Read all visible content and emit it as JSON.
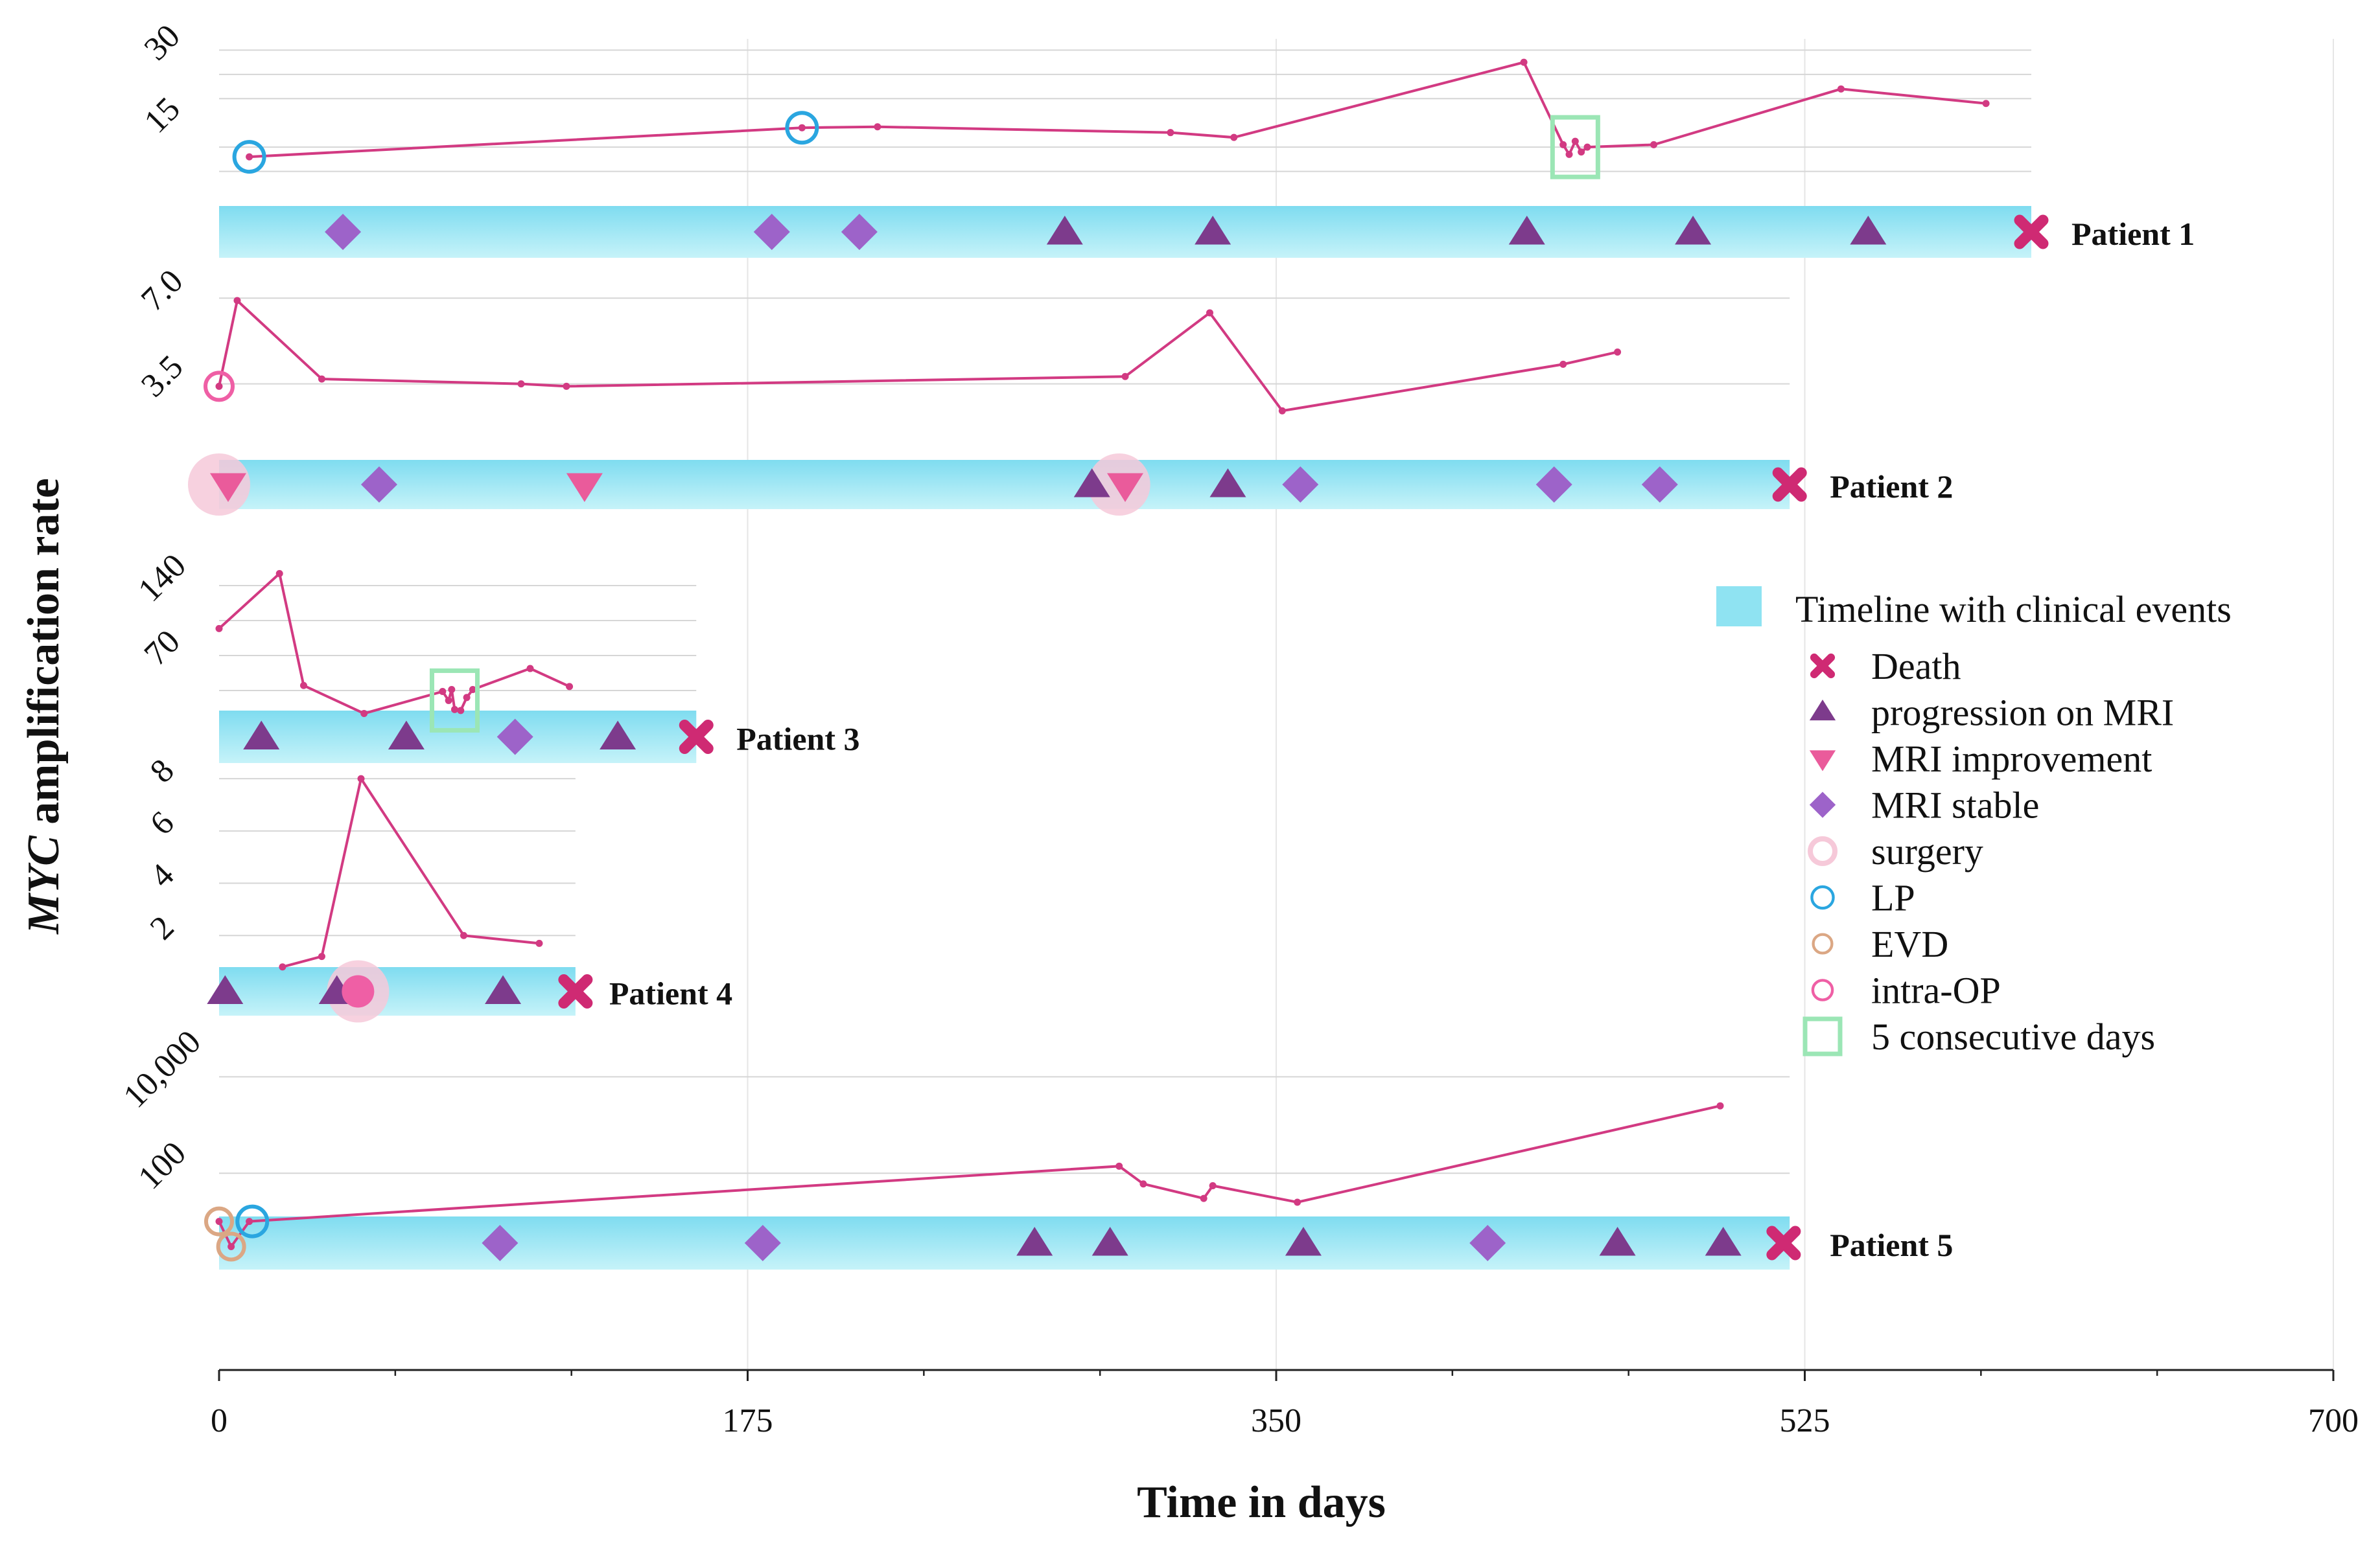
{
  "chart_data": {
    "type": "line",
    "title": "",
    "xlabel": "Time in days",
    "ylabel_prefix": "MYC",
    "ylabel_suffix": " amplification rate",
    "xlim": [
      0,
      700
    ],
    "x_ticks": [
      0,
      175,
      350,
      525,
      700
    ],
    "x_tick_labels": [
      "0",
      "175",
      "350",
      "525",
      "700"
    ],
    "colors": {
      "line": "#d23a82",
      "timeline": "#8fe3f2",
      "death": "#cf2a73",
      "progression": "#7d3b8c",
      "improvement": "#ea5b9b",
      "stable": "#9d63c9",
      "surgery": "#f6c9d9",
      "lp": "#2aa6e0",
      "evd": "#dba784",
      "intraop": "#ef5fa5",
      "five_days": "#9be6b5"
    },
    "legend": {
      "title": "Timeline with clinical events",
      "items": [
        {
          "key": "death",
          "label": "Death"
        },
        {
          "key": "progression",
          "label": "progression on MRI"
        },
        {
          "key": "improvement",
          "label": "MRI improvement"
        },
        {
          "key": "stable",
          "label": "MRI stable"
        },
        {
          "key": "surgery",
          "label": "surgery"
        },
        {
          "key": "lp",
          "label": "LP"
        },
        {
          "key": "evd",
          "label": "EVD"
        },
        {
          "key": "intraop",
          "label": "intra-OP"
        },
        {
          "key": "five_days",
          "label": "5 consecutive days"
        }
      ]
    },
    "series": [
      {
        "name": "Patient 1",
        "y_scale": "linear",
        "ylim": [
          0,
          35
        ],
        "y_ticks": [
          15,
          30
        ],
        "y_tick_labels": [
          "15",
          "30"
        ],
        "gridlines": [
          5,
          10,
          20,
          25,
          30
        ],
        "timeline_end": 600,
        "points": [
          [
            10,
            8
          ],
          [
            193,
            14
          ],
          [
            218,
            14.2
          ],
          [
            315,
            13
          ],
          [
            336,
            12
          ],
          [
            432,
            27.5
          ],
          [
            445,
            10.5
          ],
          [
            447,
            8.5
          ],
          [
            449,
            11.2
          ],
          [
            451,
            9
          ],
          [
            453,
            10
          ],
          [
            475,
            10.5
          ],
          [
            537,
            22
          ],
          [
            585,
            19
          ]
        ],
        "events": [
          {
            "type": "stable",
            "day": 41
          },
          {
            "type": "stable",
            "day": 183
          },
          {
            "type": "stable",
            "day": 212
          },
          {
            "type": "progression",
            "day": 280
          },
          {
            "type": "progression",
            "day": 329
          },
          {
            "type": "progression",
            "day": 433
          },
          {
            "type": "progression",
            "day": 488
          },
          {
            "type": "progression",
            "day": 546
          },
          {
            "type": "death",
            "day": 600
          }
        ],
        "markers": [
          {
            "type": "lp",
            "day": 10,
            "value": 8
          },
          {
            "type": "lp",
            "day": 193,
            "value": 14
          },
          {
            "type": "five_days",
            "day": 449,
            "value": 10
          }
        ]
      },
      {
        "name": "Patient 2",
        "y_scale": "linear",
        "ylim": [
          0,
          7.8
        ],
        "y_ticks": [
          3.5,
          7.0
        ],
        "y_tick_labels": [
          "3.5",
          "7.0"
        ],
        "gridlines": [
          7.0,
          3.5
        ],
        "timeline_end": 520,
        "points": [
          [
            0,
            3.4
          ],
          [
            6,
            6.9
          ],
          [
            34,
            3.7
          ],
          [
            100,
            3.5
          ],
          [
            115,
            3.4
          ],
          [
            300,
            3.8
          ],
          [
            328,
            6.4
          ],
          [
            352,
            2.4
          ],
          [
            445,
            4.3
          ],
          [
            463,
            4.8
          ]
        ],
        "events": [
          {
            "type": "surgery",
            "day": 0
          },
          {
            "type": "improvement",
            "day": 3
          },
          {
            "type": "stable",
            "day": 53
          },
          {
            "type": "improvement",
            "day": 121
          },
          {
            "type": "progression",
            "day": 289
          },
          {
            "type": "surgery",
            "day": 298
          },
          {
            "type": "improvement",
            "day": 300
          },
          {
            "type": "progression",
            "day": 334
          },
          {
            "type": "stable",
            "day": 358
          },
          {
            "type": "stable",
            "day": 442
          },
          {
            "type": "stable",
            "day": 477
          },
          {
            "type": "death",
            "day": 520
          }
        ],
        "markers": [
          {
            "type": "intraop",
            "day": 0,
            "value": 3.4
          }
        ]
      },
      {
        "name": "Patient 3",
        "y_scale": "linear",
        "ylim": [
          0,
          175
        ],
        "y_ticks": [
          70,
          140
        ],
        "y_tick_labels": [
          "70",
          "140"
        ],
        "gridlines": [
          35,
          70,
          105,
          140
        ],
        "timeline_end": 158,
        "points": [
          [
            0,
            97
          ],
          [
            20,
            152
          ],
          [
            28,
            40
          ],
          [
            48,
            12
          ],
          [
            74,
            34
          ],
          [
            76,
            25
          ],
          [
            77,
            36
          ],
          [
            78,
            16
          ],
          [
            80,
            15
          ],
          [
            82,
            28
          ],
          [
            84,
            36
          ],
          [
            103,
            57
          ],
          [
            116,
            39
          ]
        ],
        "events": [
          {
            "type": "progression",
            "day": 14
          },
          {
            "type": "progression",
            "day": 62
          },
          {
            "type": "stable",
            "day": 98
          },
          {
            "type": "progression",
            "day": 132
          },
          {
            "type": "death",
            "day": 158
          }
        ],
        "markers": [
          {
            "type": "five_days",
            "day": 78,
            "value": 25
          }
        ]
      },
      {
        "name": "Patient 4",
        "y_scale": "linear",
        "ylim": [
          0,
          8.3
        ],
        "y_ticks": [
          2,
          4,
          6,
          8
        ],
        "y_tick_labels": [
          "2",
          "4",
          "6",
          "8"
        ],
        "gridlines": [
          2,
          4,
          6,
          8
        ],
        "timeline_end": 118,
        "points": [
          [
            21,
            0.8
          ],
          [
            34,
            1.2
          ],
          [
            47,
            8
          ],
          [
            81,
            2
          ],
          [
            106,
            1.7
          ]
        ],
        "events": [
          {
            "type": "progression",
            "day": 2
          },
          {
            "type": "progression",
            "day": 39
          },
          {
            "type": "surgery",
            "day": 46
          },
          {
            "type": "intraop",
            "day": 46
          },
          {
            "type": "progression",
            "day": 94
          },
          {
            "type": "death",
            "day": 118
          }
        ],
        "markers": []
      },
      {
        "name": "Patient 5",
        "y_scale": "log",
        "ylim": [
          1,
          20000
        ],
        "y_ticks": [
          100,
          10000
        ],
        "y_tick_labels": [
          "100",
          "10,000"
        ],
        "gridlines": [
          100,
          10000
        ],
        "timeline_end": 520,
        "points": [
          [
            0,
            10
          ],
          [
            4,
            3
          ],
          [
            10,
            10
          ],
          [
            298,
            140
          ],
          [
            306,
            60
          ],
          [
            326,
            30
          ],
          [
            329,
            55
          ],
          [
            357,
            25
          ],
          [
            497,
            2500
          ]
        ],
        "events": [
          {
            "type": "stable",
            "day": 93
          },
          {
            "type": "stable",
            "day": 180
          },
          {
            "type": "progression",
            "day": 270
          },
          {
            "type": "progression",
            "day": 295
          },
          {
            "type": "progression",
            "day": 359
          },
          {
            "type": "stable",
            "day": 420
          },
          {
            "type": "progression",
            "day": 463
          },
          {
            "type": "progression",
            "day": 498
          },
          {
            "type": "death",
            "day": 518
          }
        ],
        "markers": [
          {
            "type": "evd",
            "day": 0,
            "value": 10
          },
          {
            "type": "evd",
            "day": 4,
            "value": 3
          },
          {
            "type": "lp",
            "day": 11,
            "value": 10
          }
        ]
      }
    ]
  }
}
